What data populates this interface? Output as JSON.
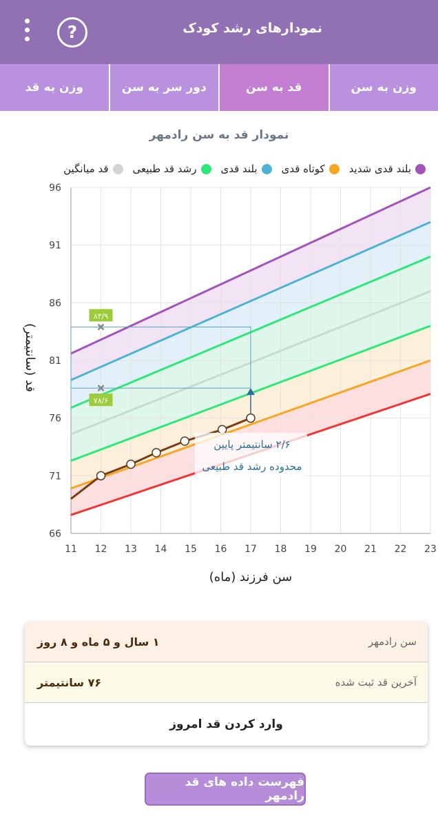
{
  "app": {
    "title": "نمودارهای رشد کودک",
    "help_icon": "?"
  },
  "tabs": [
    {
      "label": "وزن به سن",
      "active": false
    },
    {
      "label": "قد به سن",
      "active": true
    },
    {
      "label": "دور سر به سن",
      "active": false
    },
    {
      "label": "وزن به قد",
      "active": false
    }
  ],
  "chart_title": "نمودار قد به سن رادمهر",
  "legend": [
    {
      "label": "بلند قدی شدید",
      "color": "#a253b8"
    },
    {
      "label": "کوتاه قدی",
      "color": "#f5a623"
    },
    {
      "label": "بلند قدی",
      "color": "#4eb3d3"
    },
    {
      "label": "رشد قد طبیعی",
      "color": "#2ee67a"
    },
    {
      "label": "قد میانگین",
      "color": "#d3d3d3"
    }
  ],
  "chart_data": {
    "type": "line",
    "xlabel": "سن فرزند (ماه)",
    "ylabel": "قد (سانتیمتر)",
    "xlim": [
      11,
      23
    ],
    "ylim": [
      66,
      96
    ],
    "x_ticks": [
      11,
      12,
      13,
      14,
      15,
      16,
      17,
      18,
      19,
      20,
      21,
      22,
      23
    ],
    "y_ticks": [
      66,
      71,
      76,
      81,
      86,
      91,
      96
    ],
    "grid": true,
    "series": [
      {
        "name": "بلند قدی شدید",
        "color": "#a253b8",
        "x": [
          11,
          23
        ],
        "y": [
          81.6,
          96
        ]
      },
      {
        "name": "بلند قدی",
        "color": "#4eb3d3",
        "x": [
          11,
          23
        ],
        "y": [
          79.3,
          93
        ]
      },
      {
        "name": "رشد قد طبیعی",
        "color": "#2ee67a",
        "x": [
          11,
          23
        ],
        "y": [
          76.9,
          90
        ]
      },
      {
        "name": "قد میانگین",
        "color": "#c5dcd0",
        "x": [
          11,
          23
        ],
        "y": [
          74.6,
          87
        ]
      },
      {
        "name": "رشد قد طبیعی",
        "color": "#2ee67a",
        "x": [
          11,
          23
        ],
        "y": [
          72.3,
          84
        ]
      },
      {
        "name": "کوتاه قدی",
        "color": "#f5a623",
        "x": [
          11,
          23
        ],
        "y": [
          69.9,
          81
        ]
      },
      {
        "name": "red",
        "color": "#f03434",
        "x": [
          11,
          23
        ],
        "y": [
          67.6,
          78.1
        ]
      }
    ],
    "measurements": {
      "color": "#7a3c12",
      "x": [
        12,
        13,
        13.85,
        14.8,
        16.05,
        17
      ],
      "y": [
        71,
        72,
        73,
        74,
        75,
        76
      ]
    },
    "range_box": {
      "x": [
        11,
        17
      ],
      "y": [
        78.6,
        83.9
      ]
    },
    "markers": [
      {
        "label": "۸۳/۹",
        "x": 12,
        "y": 83.9
      },
      {
        "label": "۷۸/۶",
        "x": 12,
        "y": 78.6
      }
    ],
    "arrow": {
      "x": 17,
      "y_from": 76,
      "y_to": 78.6
    },
    "annotation": {
      "line1": "۲/۶ سانتیمتر پایین",
      "line2": "محدوده رشد قد طبیعی"
    }
  },
  "info": {
    "age_label": "سن رادمهر",
    "age_value": "۱ سال و ۵ ماه و ۸ روز",
    "height_label": "آخرین قد ثبت شده",
    "height_value": "۷۶ سانتیمتر",
    "enter_button": "وارد کردن قد امروز"
  },
  "list_button": "فهرست داده های قد رادمهر"
}
